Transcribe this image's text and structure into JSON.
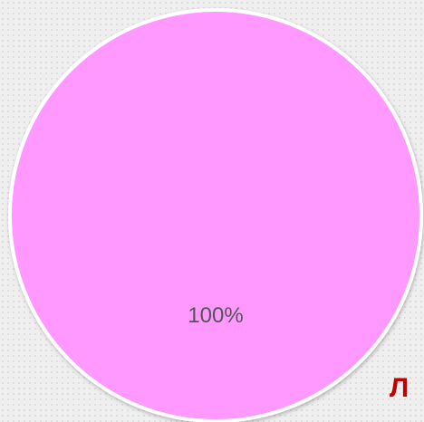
{
  "chart_data": {
    "type": "pie",
    "slices": [
      {
        "value": 100,
        "label": "100%",
        "color": "#ff99ff"
      }
    ],
    "legend": "none"
  },
  "overlay": {
    "corner_text": "Л"
  }
}
